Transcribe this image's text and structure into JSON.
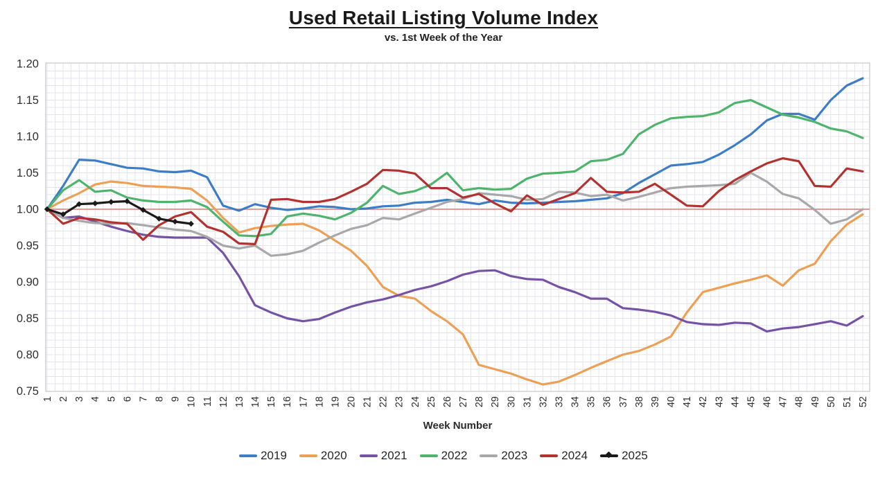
{
  "title": "Used Retail Listing Volume Index",
  "subtitle": "vs. 1st Week of the Year",
  "chart_data": {
    "type": "line",
    "xlabel": "Week Number",
    "ylim": [
      0.75,
      1.2
    ],
    "y_ticks": [
      "0.75",
      "0.80",
      "0.85",
      "0.90",
      "0.95",
      "1.00",
      "1.05",
      "1.10",
      "1.15",
      "1.20"
    ],
    "x_ticks": [
      1,
      2,
      3,
      4,
      5,
      6,
      7,
      8,
      9,
      10,
      11,
      12,
      13,
      14,
      15,
      16,
      17,
      18,
      19,
      20,
      21,
      22,
      23,
      24,
      25,
      26,
      27,
      28,
      29,
      30,
      31,
      32,
      33,
      34,
      35,
      36,
      37,
      38,
      39,
      40,
      41,
      42,
      43,
      44,
      45,
      46,
      47,
      48,
      49,
      50,
      51,
      52
    ],
    "grid": {
      "on": true,
      "minor_y_step": 0.01,
      "minor_x_step": 0.5,
      "color": "#e2e3ea",
      "border_color": "#c5c6cc"
    },
    "baseline": {
      "value": 1.0,
      "color": "#dd8d85"
    },
    "legend_position": "bottom",
    "series": [
      {
        "name": "2019",
        "color": "#3c7dc5",
        "marker": "none",
        "values": [
          1.0,
          1.032,
          1.068,
          1.067,
          1.062,
          1.057,
          1.056,
          1.052,
          1.051,
          1.053,
          1.044,
          1.005,
          0.998,
          1.007,
          1.002,
          0.999,
          1.001,
          1.004,
          1.003,
          1.0,
          1.001,
          1.004,
          1.005,
          1.009,
          1.01,
          1.013,
          1.01,
          1.007,
          1.012,
          1.009,
          1.008,
          1.009,
          1.01,
          1.011,
          1.013,
          1.015,
          1.022,
          1.036,
          1.048,
          1.06,
          1.062,
          1.065,
          1.075,
          1.088,
          1.103,
          1.122,
          1.131,
          1.131,
          1.123,
          1.15,
          1.17,
          1.18
        ]
      },
      {
        "name": "2020",
        "color": "#eca055",
        "marker": "none",
        "values": [
          1.0,
          1.012,
          1.022,
          1.034,
          1.038,
          1.036,
          1.032,
          1.031,
          1.03,
          1.028,
          1.012,
          0.988,
          0.968,
          0.974,
          0.977,
          0.979,
          0.98,
          0.971,
          0.957,
          0.943,
          0.922,
          0.893,
          0.881,
          0.877,
          0.86,
          0.846,
          0.828,
          0.786,
          0.78,
          0.774,
          0.766,
          0.759,
          0.763,
          0.772,
          0.782,
          0.791,
          0.8,
          0.805,
          0.814,
          0.825,
          0.858,
          0.886,
          0.892,
          0.898,
          0.903,
          0.909,
          0.895,
          0.916,
          0.925,
          0.956,
          0.979,
          0.993
        ]
      },
      {
        "name": "2021",
        "color": "#7552a3",
        "marker": "none",
        "values": [
          1.0,
          0.988,
          0.99,
          0.983,
          0.976,
          0.97,
          0.965,
          0.962,
          0.961,
          0.961,
          0.961,
          0.94,
          0.908,
          0.868,
          0.858,
          0.85,
          0.846,
          0.849,
          0.858,
          0.866,
          0.872,
          0.876,
          0.882,
          0.889,
          0.894,
          0.901,
          0.91,
          0.915,
          0.916,
          0.908,
          0.904,
          0.903,
          0.893,
          0.886,
          0.877,
          0.877,
          0.864,
          0.862,
          0.859,
          0.854,
          0.845,
          0.842,
          0.841,
          0.844,
          0.843,
          0.832,
          0.836,
          0.838,
          0.842,
          0.846,
          0.84,
          0.853
        ]
      },
      {
        "name": "2022",
        "color": "#4eb46c",
        "marker": "none",
        "values": [
          1.0,
          1.026,
          1.04,
          1.024,
          1.026,
          1.016,
          1.012,
          1.01,
          1.01,
          1.012,
          1.003,
          0.983,
          0.964,
          0.963,
          0.966,
          0.99,
          0.994,
          0.991,
          0.986,
          0.995,
          1.009,
          1.032,
          1.021,
          1.025,
          1.034,
          1.05,
          1.026,
          1.029,
          1.027,
          1.028,
          1.042,
          1.049,
          1.05,
          1.052,
          1.066,
          1.068,
          1.076,
          1.103,
          1.116,
          1.125,
          1.127,
          1.128,
          1.133,
          1.146,
          1.15,
          1.14,
          1.13,
          1.126,
          1.12,
          1.111,
          1.107,
          1.098
        ]
      },
      {
        "name": "2023",
        "color": "#a8a8a8",
        "marker": "none",
        "values": [
          1.0,
          0.988,
          0.984,
          0.981,
          0.98,
          0.981,
          0.978,
          0.975,
          0.972,
          0.97,
          0.962,
          0.95,
          0.946,
          0.95,
          0.936,
          0.938,
          0.943,
          0.954,
          0.964,
          0.973,
          0.978,
          0.988,
          0.986,
          0.994,
          1.002,
          1.01,
          1.014,
          1.022,
          1.02,
          1.018,
          1.013,
          1.014,
          1.024,
          1.023,
          1.018,
          1.02,
          1.012,
          1.017,
          1.023,
          1.029,
          1.031,
          1.032,
          1.033,
          1.035,
          1.05,
          1.038,
          1.021,
          1.015,
          0.999,
          0.98,
          0.986,
          1.0
        ]
      },
      {
        "name": "2024",
        "color": "#b23230",
        "marker": "none",
        "values": [
          1.0,
          0.98,
          0.988,
          0.986,
          0.982,
          0.98,
          0.958,
          0.978,
          0.99,
          0.996,
          0.976,
          0.969,
          0.953,
          0.952,
          1.013,
          1.014,
          1.01,
          1.01,
          1.014,
          1.024,
          1.035,
          1.054,
          1.053,
          1.049,
          1.029,
          1.029,
          1.016,
          1.021,
          1.008,
          0.997,
          1.019,
          1.006,
          1.014,
          1.022,
          1.043,
          1.024,
          1.023,
          1.024,
          1.035,
          1.02,
          1.005,
          1.004,
          1.025,
          1.04,
          1.052,
          1.063,
          1.07,
          1.066,
          1.032,
          1.031,
          1.056,
          1.052
        ]
      },
      {
        "name": "2025",
        "color": "#1a1a1a",
        "marker": "diamond",
        "values": [
          1.0,
          0.993,
          1.007,
          1.008,
          1.01,
          1.011,
          0.999,
          0.987,
          0.983,
          0.98
        ]
      }
    ]
  }
}
